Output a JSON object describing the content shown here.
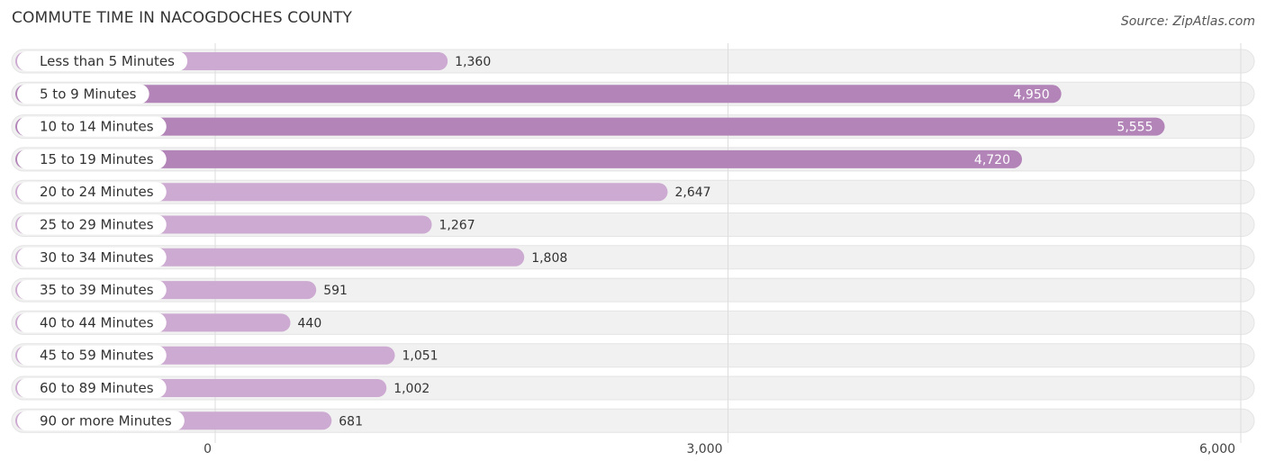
{
  "chart_data": {
    "type": "bar",
    "orientation": "horizontal",
    "title": "COMMUTE TIME IN NACOGDOCHES COUNTY",
    "source": "Source: ZipAtlas.com",
    "categories": [
      "Less than 5 Minutes",
      "5 to 9 Minutes",
      "10 to 14 Minutes",
      "15 to 19 Minutes",
      "20 to 24 Minutes",
      "25 to 29 Minutes",
      "30 to 34 Minutes",
      "35 to 39 Minutes",
      "40 to 44 Minutes",
      "45 to 59 Minutes",
      "60 to 89 Minutes",
      "90 or more Minutes"
    ],
    "values": [
      1360,
      4950,
      5555,
      4720,
      2647,
      1267,
      1808,
      591,
      440,
      1051,
      1002,
      681
    ],
    "value_labels": [
      "1,360",
      "4,950",
      "5,555",
      "4,720",
      "2,647",
      "1,267",
      "1,808",
      "591",
      "440",
      "1,051",
      "1,002",
      "681"
    ],
    "xlim": [
      0,
      6000
    ],
    "xticks": [
      0,
      3000,
      6000
    ],
    "xtick_labels": [
      "0",
      "3,000",
      "6,000"
    ],
    "xlabel": "",
    "ylabel": "",
    "grid": true,
    "colors": {
      "bar_strong": "#b284b8",
      "bar_light": "#cdaad1",
      "track": "#f1f1f1",
      "value_inside": "#ffffff",
      "value_outside": "#333333",
      "grid": "#dddddd"
    }
  }
}
